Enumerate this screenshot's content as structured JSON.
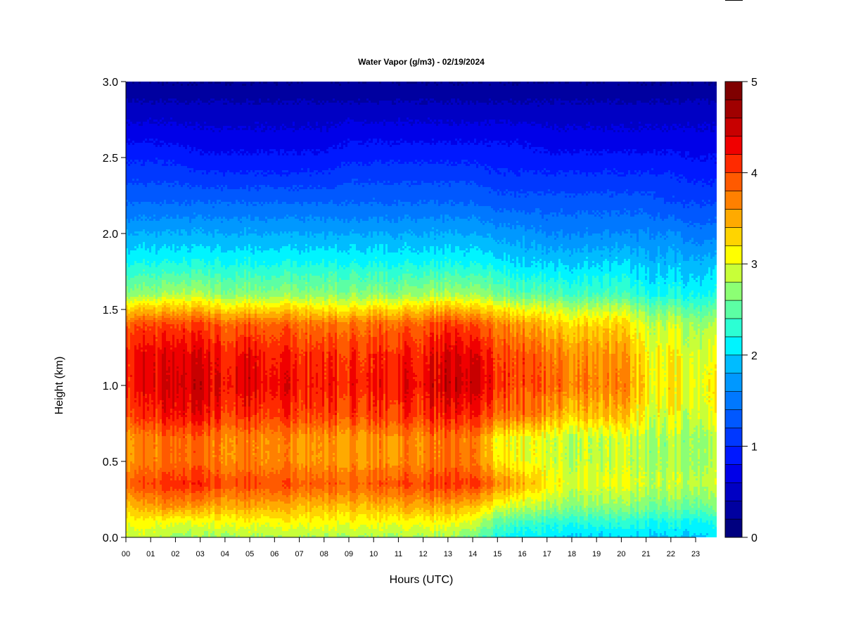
{
  "chart_data": {
    "type": "heatmap",
    "title": "Water Vapor (g/m3) - 02/19/2024",
    "xlabel": "Hours (UTC)",
    "ylabel": "Height (km)",
    "xlim": [
      0,
      23.85
    ],
    "ylim": [
      0,
      3.0
    ],
    "x_ticks": [
      "00",
      "01",
      "02",
      "03",
      "04",
      "05",
      "06",
      "07",
      "08",
      "09",
      "10",
      "11",
      "12",
      "13",
      "14",
      "15",
      "16",
      "17",
      "18",
      "19",
      "20",
      "21",
      "22",
      "23"
    ],
    "y_ticks": [
      "0.0",
      "0.5",
      "1.0",
      "1.5",
      "2.0",
      "2.5",
      "3.0"
    ],
    "colorbar": {
      "range": [
        0,
        5
      ],
      "step": 0.2,
      "ticks": [
        "0",
        "1",
        "2",
        "3",
        "4",
        "5"
      ],
      "colors": [
        "#00007f",
        "#0000a0",
        "#0000c4",
        "#0000e8",
        "#0018ff",
        "#0038ff",
        "#0058ff",
        "#0078ff",
        "#0098ff",
        "#00bcff",
        "#00f4ff",
        "#2cffd4",
        "#5cffa4",
        "#8cff74",
        "#c8ff38",
        "#ffff00",
        "#ffd400",
        "#ffaa00",
        "#ff8000",
        "#ff5a00",
        "#ff2a00",
        "#f00000",
        "#c80000",
        "#a00000",
        "#7f0000"
      ]
    },
    "heights_km": [
      0,
      0.1,
      0.2,
      0.35,
      0.5,
      0.65,
      0.8,
      1.0,
      1.2,
      1.4,
      1.5,
      1.6,
      1.8,
      2.0,
      2.2,
      2.4,
      2.6,
      2.8,
      3.0
    ],
    "hours": [
      0,
      1,
      2,
      3,
      4,
      5,
      6,
      7,
      8,
      9,
      10,
      11,
      12,
      13,
      14,
      15,
      16,
      17,
      18,
      19,
      20,
      21,
      22,
      23
    ],
    "values": [
      [
        2.9,
        3.1,
        3.4,
        3.9,
        3.6,
        3.6,
        4.0,
        4.2,
        4.2,
        3.9,
        3.3,
        2.7,
        2.2,
        1.8,
        1.4,
        1.1,
        0.8,
        0.5,
        0.2
      ],
      [
        2.9,
        3.1,
        3.5,
        4.0,
        3.7,
        3.7,
        4.1,
        4.3,
        4.3,
        4.0,
        3.4,
        2.7,
        2.2,
        1.8,
        1.4,
        1.1,
        0.8,
        0.5,
        0.2
      ],
      [
        2.7,
        3.0,
        3.6,
        4.1,
        3.8,
        3.8,
        4.2,
        4.4,
        4.3,
        4.0,
        3.4,
        2.8,
        2.2,
        1.8,
        1.4,
        1.1,
        0.8,
        0.5,
        0.2
      ],
      [
        2.7,
        3.0,
        3.5,
        4.1,
        3.8,
        3.8,
        4.2,
        4.4,
        4.3,
        4.0,
        3.4,
        2.8,
        2.2,
        1.8,
        1.4,
        1.0,
        0.7,
        0.5,
        0.2
      ],
      [
        2.8,
        3.1,
        3.5,
        4.0,
        3.7,
        3.7,
        4.1,
        4.3,
        4.2,
        3.9,
        3.3,
        2.7,
        2.2,
        1.8,
        1.4,
        1.0,
        0.7,
        0.5,
        0.2
      ],
      [
        2.8,
        3.1,
        3.5,
        4.0,
        3.7,
        3.7,
        4.1,
        4.4,
        4.3,
        3.9,
        3.3,
        2.7,
        2.2,
        1.8,
        1.4,
        1.0,
        0.7,
        0.5,
        0.2
      ],
      [
        2.8,
        3.1,
        3.5,
        4.0,
        3.7,
        3.7,
        4.1,
        4.3,
        4.2,
        3.9,
        3.3,
        2.7,
        2.2,
        1.8,
        1.4,
        1.0,
        0.7,
        0.5,
        0.2
      ],
      [
        2.8,
        3.1,
        3.4,
        3.9,
        3.6,
        3.6,
        4.0,
        4.2,
        4.1,
        3.8,
        3.3,
        2.7,
        2.2,
        1.8,
        1.4,
        1.0,
        0.7,
        0.5,
        0.2
      ],
      [
        2.8,
        3.1,
        3.4,
        3.9,
        3.6,
        3.6,
        4.0,
        4.2,
        4.1,
        3.8,
        3.2,
        2.7,
        2.2,
        1.8,
        1.4,
        1.0,
        0.7,
        0.5,
        0.2
      ],
      [
        2.8,
        3.1,
        3.4,
        3.9,
        3.6,
        3.6,
        4.0,
        4.2,
        4.1,
        3.8,
        3.2,
        2.7,
        2.2,
        1.8,
        1.4,
        1.1,
        0.8,
        0.5,
        0.2
      ],
      [
        2.8,
        3.1,
        3.4,
        3.9,
        3.6,
        3.6,
        4.0,
        4.2,
        4.1,
        3.8,
        3.3,
        2.7,
        2.2,
        1.8,
        1.4,
        1.1,
        0.8,
        0.5,
        0.2
      ],
      [
        2.8,
        3.1,
        3.5,
        4.0,
        3.7,
        3.7,
        4.1,
        4.3,
        4.2,
        3.9,
        3.3,
        2.7,
        2.2,
        1.8,
        1.4,
        1.1,
        0.8,
        0.5,
        0.2
      ],
      [
        2.8,
        3.1,
        3.5,
        4.0,
        3.7,
        3.7,
        4.1,
        4.3,
        4.2,
        3.9,
        3.4,
        2.8,
        2.2,
        1.8,
        1.4,
        1.1,
        0.8,
        0.5,
        0.2
      ],
      [
        2.8,
        3.1,
        3.5,
        4.1,
        3.8,
        3.8,
        4.2,
        4.5,
        4.4,
        4.1,
        3.5,
        2.8,
        2.2,
        1.8,
        1.4,
        1.1,
        0.8,
        0.5,
        0.2
      ],
      [
        2.6,
        3.0,
        3.4,
        4.1,
        3.8,
        3.8,
        4.2,
        4.5,
        4.4,
        4.0,
        3.4,
        2.8,
        2.2,
        1.8,
        1.4,
        1.1,
        0.8,
        0.5,
        0.2
      ],
      [
        2.2,
        2.5,
        3.0,
        3.7,
        3.2,
        3.1,
        3.8,
        4.1,
        4.0,
        3.7,
        3.2,
        2.6,
        2.1,
        1.7,
        1.3,
        1.0,
        0.8,
        0.5,
        0.2
      ],
      [
        2.1,
        2.4,
        2.9,
        3.5,
        3.1,
        3.1,
        3.8,
        4.0,
        4.0,
        3.6,
        3.1,
        2.5,
        2.0,
        1.7,
        1.3,
        1.0,
        0.8,
        0.5,
        0.2
      ],
      [
        2.1,
        2.3,
        2.8,
        3.2,
        3.0,
        3.0,
        3.6,
        3.9,
        3.8,
        3.4,
        3.0,
        2.5,
        2.0,
        1.6,
        1.3,
        1.0,
        0.7,
        0.5,
        0.2
      ],
      [
        2.0,
        2.3,
        2.7,
        3.0,
        2.9,
        2.9,
        3.4,
        3.8,
        3.7,
        3.3,
        2.9,
        2.4,
        2.0,
        1.6,
        1.3,
        1.0,
        0.7,
        0.5,
        0.2
      ],
      [
        2.0,
        2.3,
        2.7,
        3.0,
        2.9,
        2.9,
        3.4,
        3.7,
        3.6,
        3.3,
        2.9,
        2.4,
        2.0,
        1.6,
        1.3,
        1.0,
        0.7,
        0.5,
        0.2
      ],
      [
        2.0,
        2.3,
        2.7,
        3.0,
        2.9,
        2.9,
        3.4,
        3.7,
        3.6,
        3.3,
        2.9,
        2.4,
        2.0,
        1.6,
        1.3,
        1.0,
        0.7,
        0.5,
        0.2
      ],
      [
        2.0,
        2.2,
        2.6,
        2.9,
        2.8,
        2.8,
        3.0,
        3.2,
        3.1,
        2.9,
        2.6,
        2.2,
        1.9,
        1.6,
        1.3,
        1.0,
        0.7,
        0.5,
        0.2
      ],
      [
        2.0,
        2.2,
        2.6,
        2.9,
        2.8,
        2.8,
        3.0,
        3.2,
        3.1,
        2.9,
        2.6,
        2.2,
        1.9,
        1.6,
        1.2,
        1.0,
        0.7,
        0.5,
        0.2
      ],
      [
        2.0,
        2.2,
        2.6,
        2.9,
        2.8,
        2.8,
        3.0,
        3.1,
        3.0,
        2.8,
        2.5,
        2.2,
        1.9,
        1.5,
        1.2,
        0.9,
        0.7,
        0.5,
        0.2
      ]
    ]
  }
}
